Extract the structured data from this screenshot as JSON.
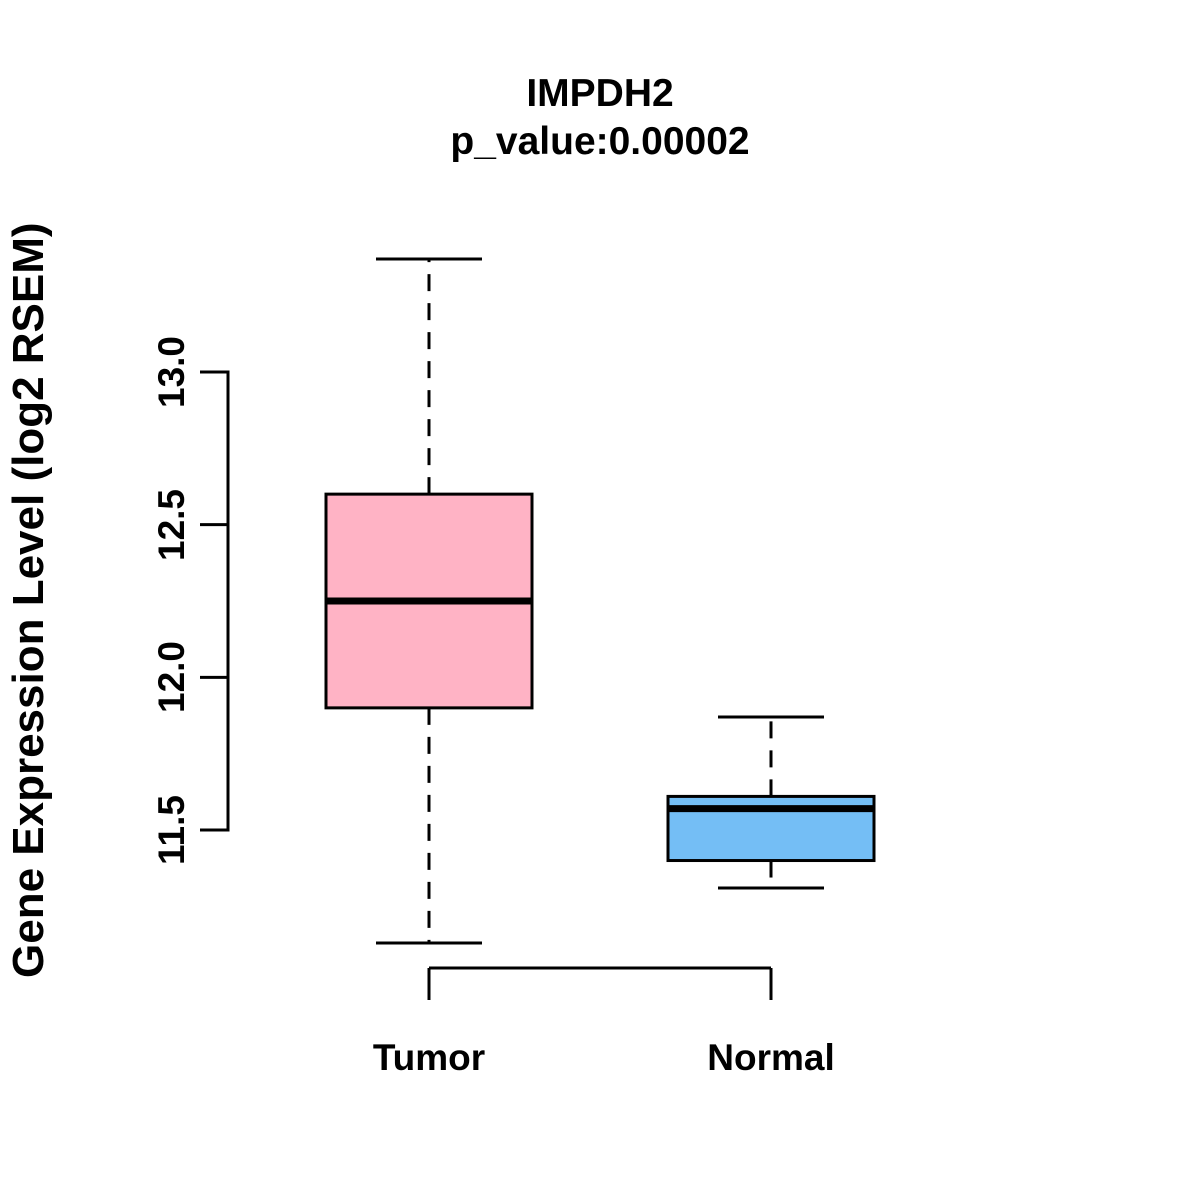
{
  "title": {
    "gene": "IMPDH2",
    "pvalue": "p_value:0.00002"
  },
  "axes": {
    "y_label": "Gene Expression Level (log2 RSEM)",
    "y_tick_labels": [
      "11.5",
      "12.0",
      "12.5",
      "13.0"
    ]
  },
  "colors": {
    "tumor_fill": "#FFB3C5",
    "normal_fill": "#74BEF5",
    "line": "#000000",
    "background": "#FFFFFF"
  },
  "chart_data": {
    "type": "boxplot",
    "title": "IMPDH2",
    "subtitle": "p_value:0.00002",
    "ylabel": "Gene Expression Level (log2 RSEM)",
    "categories": [
      "Tumor",
      "Normal"
    ],
    "yticks": [
      11.5,
      12.0,
      12.5,
      13.0
    ],
    "ylim": [
      11.05,
      13.45
    ],
    "grid": false,
    "legend": "none",
    "groups": [
      {
        "label": "Tumor",
        "fill": "#FFB3C5",
        "whisker_low": 11.13,
        "q1": 11.9,
        "median": 12.25,
        "q3": 12.6,
        "whisker_high": 13.37
      },
      {
        "label": "Normal",
        "fill": "#74BEF5",
        "whisker_low": 11.31,
        "q1": 11.4,
        "median": 11.57,
        "q3": 11.61,
        "whisker_high": 11.87
      }
    ]
  }
}
